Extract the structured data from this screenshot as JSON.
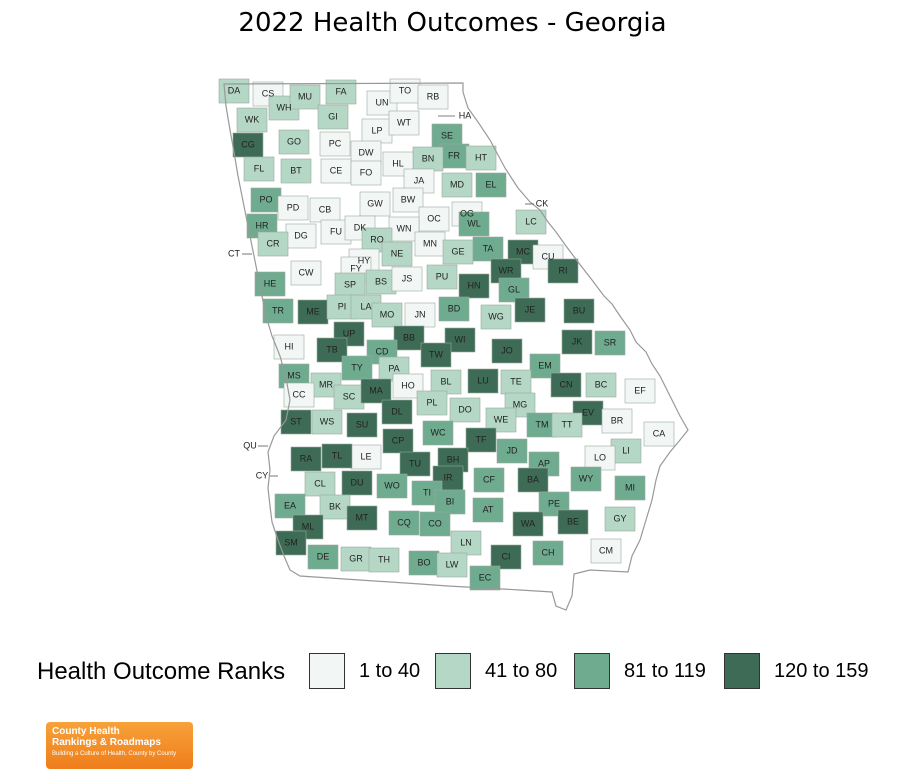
{
  "title": "2022 Health Outcomes - Georgia",
  "legend": {
    "title": "Health Outcome Ranks",
    "items": [
      {
        "label": "1 to 40",
        "color": "#f2f7f5"
      },
      {
        "label": "41 to 80",
        "color": "#b4d7c6"
      },
      {
        "label": "81 to 119",
        "color": "#6fab8f"
      },
      {
        "label": "120 to 159",
        "color": "#3d6b55"
      }
    ]
  },
  "state_border_color": "#999999",
  "county_labels": [
    "DA",
    "CS",
    "WH",
    "MU",
    "FA",
    "UN",
    "TO",
    "RB",
    "HA",
    "WK",
    "GI",
    "LP",
    "WT",
    "SE",
    "CG",
    "GO",
    "PC",
    "DW",
    "FR",
    "HT",
    "BN",
    "HL",
    "FL",
    "BT",
    "CE",
    "FO",
    "JA",
    "MD",
    "EL",
    "PO",
    "PD",
    "CB",
    "GW",
    "BW",
    "CK",
    "OC",
    "OG",
    "LC",
    "WL",
    "HR",
    "FU",
    "DK",
    "WN",
    "DG",
    "MN",
    "CR",
    "RO",
    "GE",
    "TA",
    "MC",
    "CU",
    "CT",
    "NE",
    "HY",
    "FY",
    "WR",
    "RI",
    "CW",
    "HE",
    "SP",
    "BS",
    "JS",
    "PU",
    "HN",
    "GL",
    "TR",
    "ME",
    "PI",
    "LA",
    "JN",
    "BD",
    "JE",
    "BU",
    "MO",
    "UP",
    "WG",
    "BB",
    "JK",
    "WI",
    "SR",
    "HI",
    "TB",
    "CD",
    "TW",
    "JO",
    "EM",
    "TY",
    "PA",
    "LU",
    "MS",
    "BL",
    "TE",
    "HO",
    "CN",
    "MR",
    "BC",
    "EF",
    "SC",
    "MA",
    "CC",
    "PL",
    "DO",
    "EV",
    "DL",
    "MG",
    "BR",
    "WS",
    "ST",
    "WE",
    "TM",
    "CA",
    "SU",
    "TT",
    "TF",
    "WC",
    "CP",
    "QU",
    "LI",
    "LE",
    "JD",
    "RA",
    "TL",
    "BH",
    "LO",
    "AP",
    "TU",
    "IR",
    "WY",
    "CY",
    "CL",
    "DU",
    "CF",
    "MI",
    "BA",
    "WO",
    "TI",
    "EA",
    "BK",
    "BI",
    "PE",
    "AT",
    "GY",
    "MT",
    "BE",
    "ML",
    "CQ",
    "CO",
    "WA",
    "LN",
    "SM",
    "DE",
    "GR",
    "TH",
    "CI",
    "CH",
    "BO",
    "LW",
    "CM",
    "EC"
  ],
  "logo": {
    "line1": "County Health",
    "line2": "Rankings & Roadmaps",
    "tagline": "Building a Culture of Health, County by County"
  }
}
